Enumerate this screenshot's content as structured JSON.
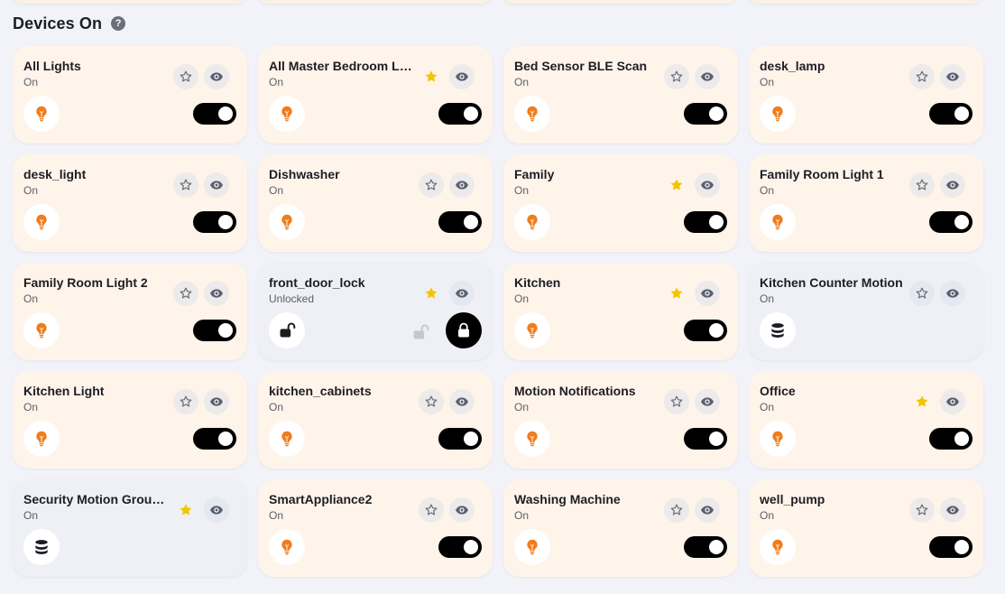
{
  "header": {
    "title": "Devices On",
    "help": "?"
  },
  "colors": {
    "accent": "#f07c1b",
    "star_active": "#f5c400",
    "card_on": "#fff4e9",
    "card_off": "#eef0f5"
  },
  "devices": [
    {
      "name": "All Lights",
      "status": "On",
      "favorite": false,
      "kind": "light"
    },
    {
      "name": "All Master Bedroom Lig...",
      "status": "On",
      "favorite": true,
      "kind": "light"
    },
    {
      "name": "Bed Sensor BLE Scan",
      "status": "On",
      "favorite": false,
      "kind": "light"
    },
    {
      "name": "desk_lamp",
      "status": "On",
      "favorite": false,
      "kind": "light"
    },
    {
      "name": "desk_light",
      "status": "On",
      "favorite": false,
      "kind": "light"
    },
    {
      "name": "Dishwasher",
      "status": "On",
      "favorite": false,
      "kind": "light"
    },
    {
      "name": "Family",
      "status": "On",
      "favorite": true,
      "kind": "light"
    },
    {
      "name": "Family Room Light 1",
      "status": "On",
      "favorite": false,
      "kind": "light"
    },
    {
      "name": "Family Room Light 2",
      "status": "On",
      "favorite": false,
      "kind": "light"
    },
    {
      "name": "front_door_lock",
      "status": "Unlocked",
      "favorite": true,
      "kind": "lock"
    },
    {
      "name": "Kitchen",
      "status": "On",
      "favorite": true,
      "kind": "light"
    },
    {
      "name": "Kitchen Counter Motion",
      "status": "On",
      "favorite": false,
      "kind": "group"
    },
    {
      "name": "Kitchen Light",
      "status": "On",
      "favorite": false,
      "kind": "light"
    },
    {
      "name": "kitchen_cabinets",
      "status": "On",
      "favorite": false,
      "kind": "light"
    },
    {
      "name": "Motion Notifications",
      "status": "On",
      "favorite": false,
      "kind": "light"
    },
    {
      "name": "Office",
      "status": "On",
      "favorite": true,
      "kind": "light"
    },
    {
      "name": "Security Motion Group ...",
      "status": "On",
      "favorite": true,
      "kind": "group"
    },
    {
      "name": "SmartAppliance2",
      "status": "On",
      "favorite": false,
      "kind": "light"
    },
    {
      "name": "Washing Machine",
      "status": "On",
      "favorite": false,
      "kind": "light"
    },
    {
      "name": "well_pump",
      "status": "On",
      "favorite": false,
      "kind": "light"
    }
  ]
}
